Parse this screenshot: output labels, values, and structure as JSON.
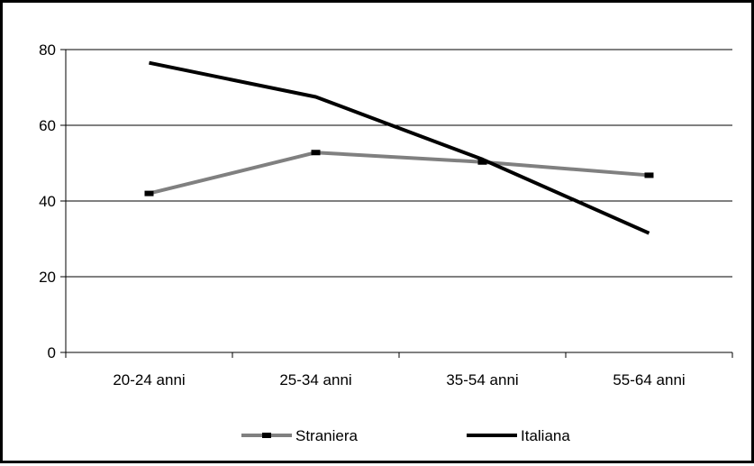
{
  "chart_data": {
    "type": "line",
    "categories": [
      "20-24 anni",
      "25-34 anni",
      "35-54 anni",
      "55-64 anni"
    ],
    "series": [
      {
        "name": "Straniera",
        "values": [
          42,
          52.8,
          50.3,
          46.8
        ],
        "color": "#808080",
        "marker": "square"
      },
      {
        "name": "Italiana",
        "values": [
          76.5,
          67.5,
          51,
          31.5
        ],
        "color": "#000000",
        "marker": "none"
      }
    ],
    "y_ticks": [
      "0",
      "20",
      "40",
      "60",
      "80"
    ],
    "ylim": [
      0,
      80
    ],
    "grid": true,
    "legend": "bottom"
  }
}
